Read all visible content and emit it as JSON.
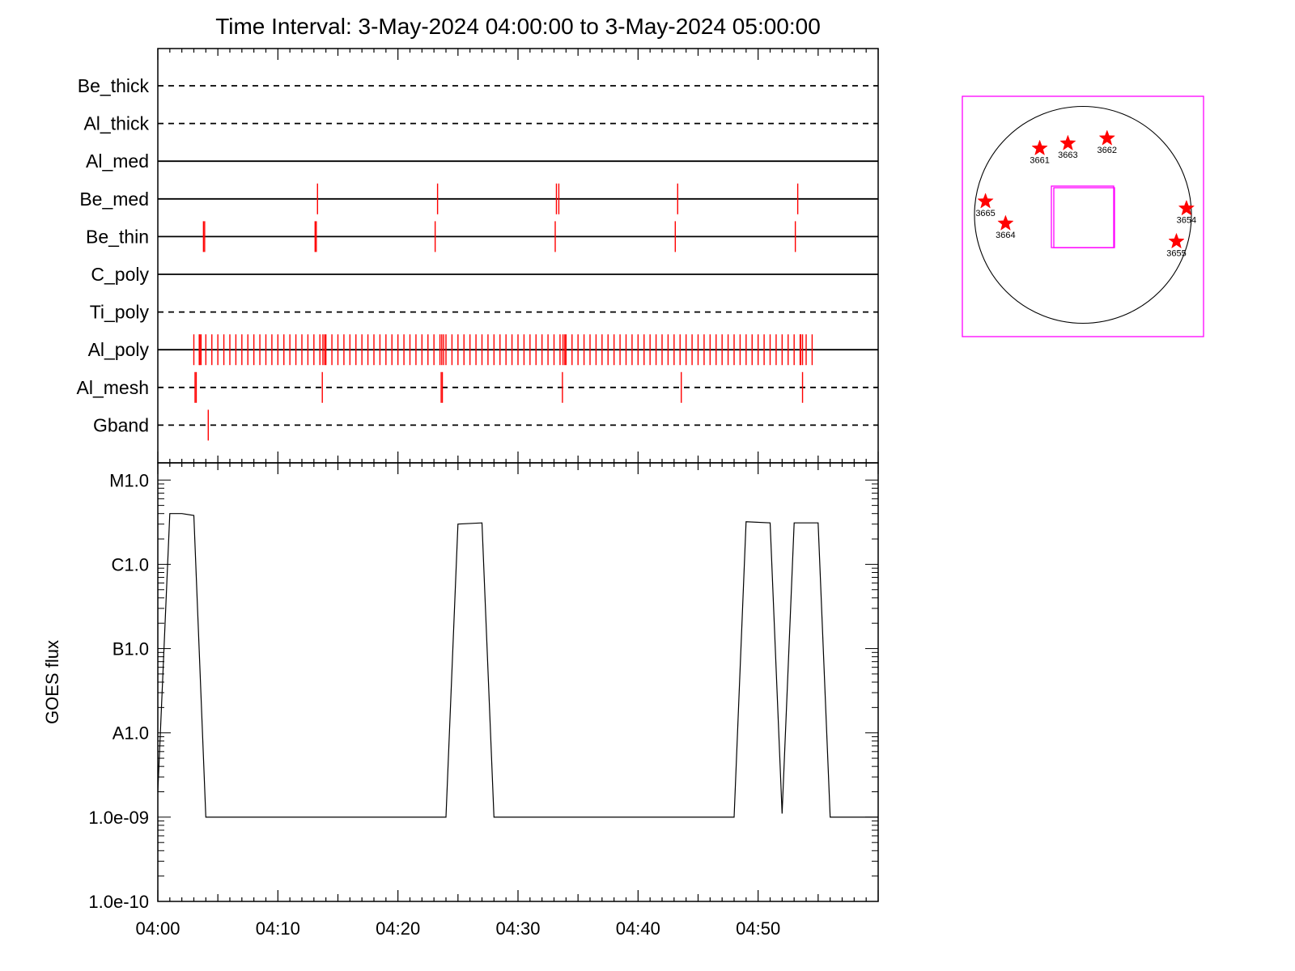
{
  "title": "Time Interval:  3-May-2024 04:00:00 to  3-May-2024 05:00:00",
  "colors": {
    "event": "#ff0000",
    "frame": "#ff00ff",
    "axis": "#000000"
  },
  "chart_data": [
    {
      "type": "timeline",
      "x_ticks": [
        "04:00",
        "04:10",
        "04:20",
        "04:30",
        "04:40",
        "04:50"
      ],
      "xlim": [
        0,
        60
      ],
      "channels": [
        {
          "name": "Be_thick",
          "style": "dashed",
          "events": []
        },
        {
          "name": "Al_thick",
          "style": "dashed",
          "events": []
        },
        {
          "name": "Al_med",
          "style": "solid",
          "events": []
        },
        {
          "name": "Be_med",
          "style": "solid",
          "events": [
            13.3,
            23.3,
            33.2,
            33.4,
            43.3,
            53.3
          ]
        },
        {
          "name": "Be_thin",
          "style": "solid",
          "events": [
            3.8,
            3.9,
            13.1,
            13.2,
            23.1,
            33.1,
            43.1,
            53.1
          ]
        },
        {
          "name": "C_poly",
          "style": "solid",
          "events": []
        },
        {
          "name": "Ti_poly",
          "style": "dashed",
          "events": []
        },
        {
          "name": "Al_poly",
          "style": "solid",
          "events_range": [
            3.0,
            54.5
          ],
          "events_step": 0.5,
          "bursts": [
            3.3,
            13.6,
            23.5,
            33.6,
            53.4
          ]
        },
        {
          "name": "Al_mesh",
          "style": "dashed",
          "events": [
            3.1,
            3.2,
            13.7,
            23.6,
            23.7,
            33.7,
            43.6,
            53.7
          ]
        },
        {
          "name": "Gband",
          "style": "dashed",
          "events": [
            4.2
          ]
        }
      ]
    },
    {
      "type": "line",
      "ylabel": "GOES flux",
      "yscale": "log",
      "ylim": [
        1e-10,
        1.6e-05
      ],
      "y_ticks": [
        {
          "label": "M1.0",
          "value": 1e-05
        },
        {
          "label": "C1.0",
          "value": 1e-06
        },
        {
          "label": "B1.0",
          "value": 1e-07
        },
        {
          "label": "A1.0",
          "value": 1e-08
        },
        {
          "label": "1.0e-09",
          "value": 1e-09
        },
        {
          "label": "1.0e-10",
          "value": 1e-10
        }
      ],
      "x_ticks": [
        "04:00",
        "04:10",
        "04:20",
        "04:30",
        "04:40",
        "04:50"
      ],
      "xlim": [
        0,
        60
      ],
      "series": [
        {
          "x": [
            0,
            1.0,
            2.0,
            3.0,
            4.0,
            24.0,
            25.0,
            27.0,
            28.0,
            48.0,
            49.0,
            51.0,
            52.0,
            53.0,
            55.0,
            56.0,
            60.0
          ],
          "y": [
            2e-09,
            4e-06,
            4e-06,
            3.8e-06,
            1e-09,
            1e-09,
            3e-06,
            3.1e-06,
            1e-09,
            1e-09,
            3.2e-06,
            3.1e-06,
            1.1e-09,
            3.1e-06,
            3.1e-06,
            1e-09,
            1e-09
          ]
        }
      ]
    },
    {
      "type": "scatter",
      "xlim": [
        -1.2,
        1.2
      ],
      "ylim": [
        -1.2,
        1.2
      ],
      "points": [
        {
          "label": "3661",
          "x": -0.43,
          "y": 0.68
        },
        {
          "label": "3663",
          "x": -0.15,
          "y": 0.73
        },
        {
          "label": "3662",
          "x": 0.24,
          "y": 0.78
        },
        {
          "label": "3665",
          "x": -0.97,
          "y": 0.15
        },
        {
          "label": "3664",
          "x": -0.77,
          "y": -0.07
        },
        {
          "label": "3654",
          "x": 1.03,
          "y": 0.08
        },
        {
          "label": "3655",
          "x": 0.93,
          "y": -0.25
        }
      ]
    }
  ]
}
